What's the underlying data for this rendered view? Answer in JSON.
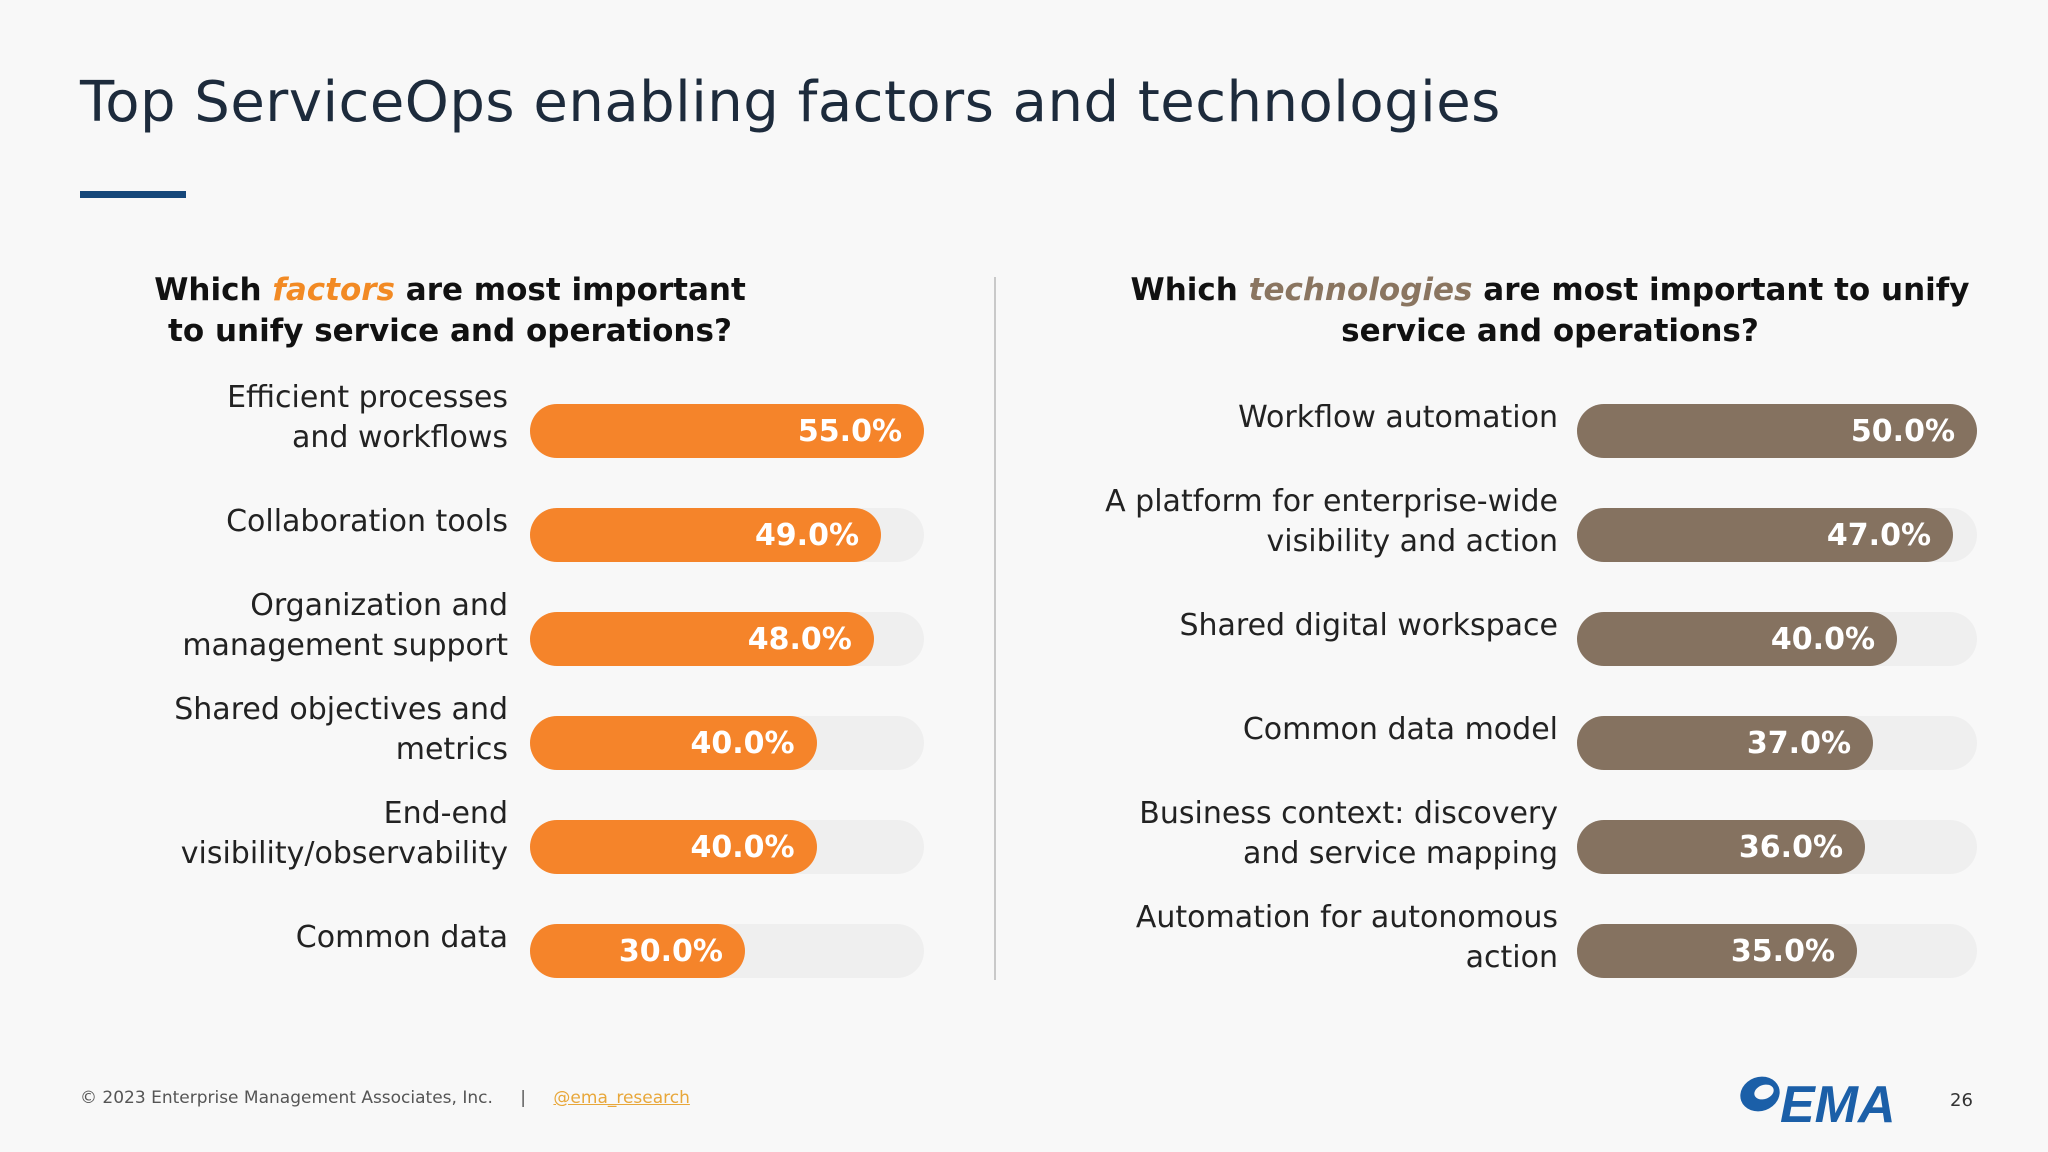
{
  "page": {
    "title": "Top ServiceOps enabling factors and technologies",
    "footer_copyright": "© 2023 Enterprise Management Associates, Inc.",
    "footer_separator": "|",
    "footer_handle": "@ema_research",
    "logo_text": "EMA",
    "page_number": "26"
  },
  "colors": {
    "factors_bar": "#f5842a",
    "technologies_bar": "#857260",
    "title_rule": "#15477a",
    "track": "#efefef"
  },
  "chart_data": [
    {
      "type": "bar",
      "orientation": "horizontal",
      "title_parts": [
        "Which ",
        "factors",
        " are most important to unify service and operations?"
      ],
      "categories": [
        "Efficient processes\nand workflows",
        "Collaboration tools",
        "Organization and\nmanagement support",
        "Shared objectives and metrics",
        "End-end visibility/observability",
        "Common data"
      ],
      "values": [
        55.0,
        49.0,
        48.0,
        40.0,
        40.0,
        30.0
      ],
      "value_labels": [
        "55.0%",
        "49.0%",
        "48.0%",
        "40.0%",
        "40.0%",
        "30.0%"
      ],
      "xlim": [
        0,
        55
      ],
      "color": "#f5842a"
    },
    {
      "type": "bar",
      "orientation": "horizontal",
      "title_parts": [
        "Which ",
        "technologies",
        " are most important to unify service and operations?"
      ],
      "categories": [
        "Workflow automation",
        "A platform for enterprise-wide\nvisibility and action",
        "Shared digital workspace",
        "Common data model",
        "Business context: discovery\nand service mapping",
        "Automation for autonomous action"
      ],
      "values": [
        50.0,
        47.0,
        40.0,
        37.0,
        36.0,
        35.0
      ],
      "value_labels": [
        "50.0%",
        "47.0%",
        "40.0%",
        "37.0%",
        "36.0%",
        "35.0%"
      ],
      "xlim": [
        0,
        50
      ],
      "color": "#857260"
    }
  ]
}
